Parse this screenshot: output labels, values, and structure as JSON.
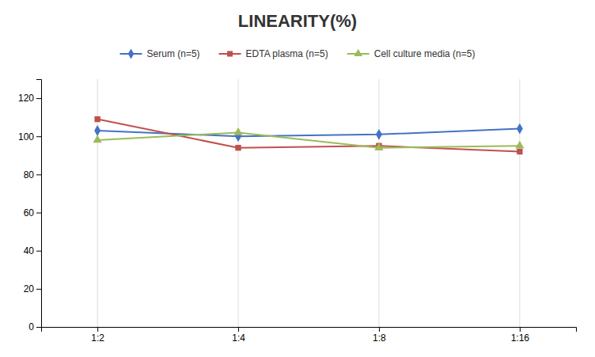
{
  "chart_data": {
    "type": "line",
    "title": "LINEARITY(%)",
    "categories": [
      "1:2",
      "1:4",
      "1:8",
      "1:16"
    ],
    "series": [
      {
        "name": "Serum (n=5)",
        "color": "#4472C4",
        "marker": "diamond",
        "values": [
          103,
          100,
          101,
          104
        ]
      },
      {
        "name": "EDTA plasma (n=5)",
        "color": "#C0504D",
        "marker": "square",
        "values": [
          109,
          94,
          95,
          92
        ]
      },
      {
        "name": "Cell culture media (n=5)",
        "color": "#9BBB59",
        "marker": "triangle",
        "values": [
          98,
          102,
          94,
          95
        ]
      }
    ],
    "ylim": [
      0,
      130
    ],
    "yticks": [
      0,
      20,
      40,
      60,
      80,
      100,
      120
    ],
    "grid": "x",
    "legend": "top"
  }
}
